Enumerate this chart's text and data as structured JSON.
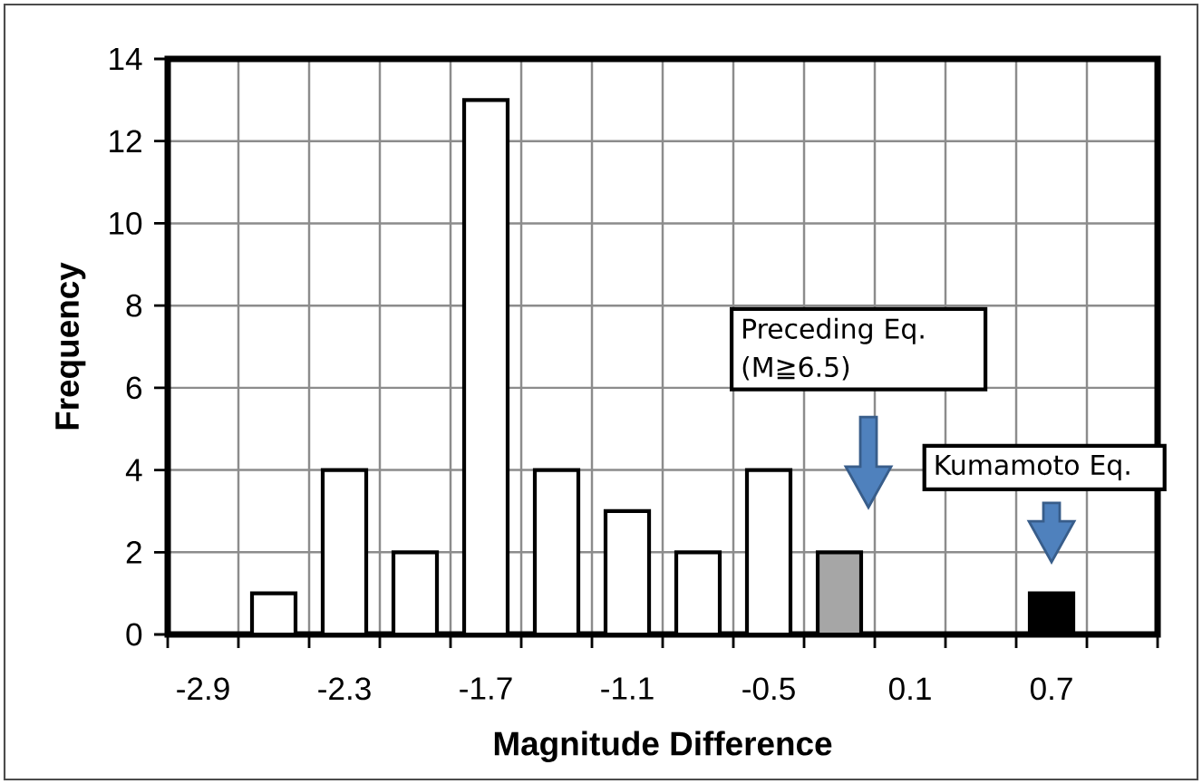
{
  "chart_data": {
    "type": "bar",
    "categories": [
      "-2.9",
      null,
      "-2.3",
      null,
      "-1.7",
      null,
      "-1.1",
      null,
      "-0.5",
      null,
      "0.1",
      null,
      "0.7",
      null
    ],
    "values": [
      0,
      1,
      4,
      2,
      13,
      4,
      3,
      2,
      4,
      2,
      0,
      0,
      1,
      0
    ],
    "colors": [
      "#ffffff",
      "#ffffff",
      "#ffffff",
      "#ffffff",
      "#ffffff",
      "#ffffff",
      "#ffffff",
      "#ffffff",
      "#ffffff",
      "#a6a6a6",
      "#ffffff",
      "#ffffff",
      "#000000",
      "#ffffff"
    ],
    "ylim": [
      0,
      14
    ],
    "yticks": [
      0,
      2,
      4,
      6,
      8,
      10,
      12,
      14
    ],
    "xlabel": "Magnitude Difference",
    "ylabel": "Frequency",
    "grid": true,
    "annotations": [
      "Preceding Eq. (M≧6.5)",
      "Kumamoto Eq."
    ]
  }
}
